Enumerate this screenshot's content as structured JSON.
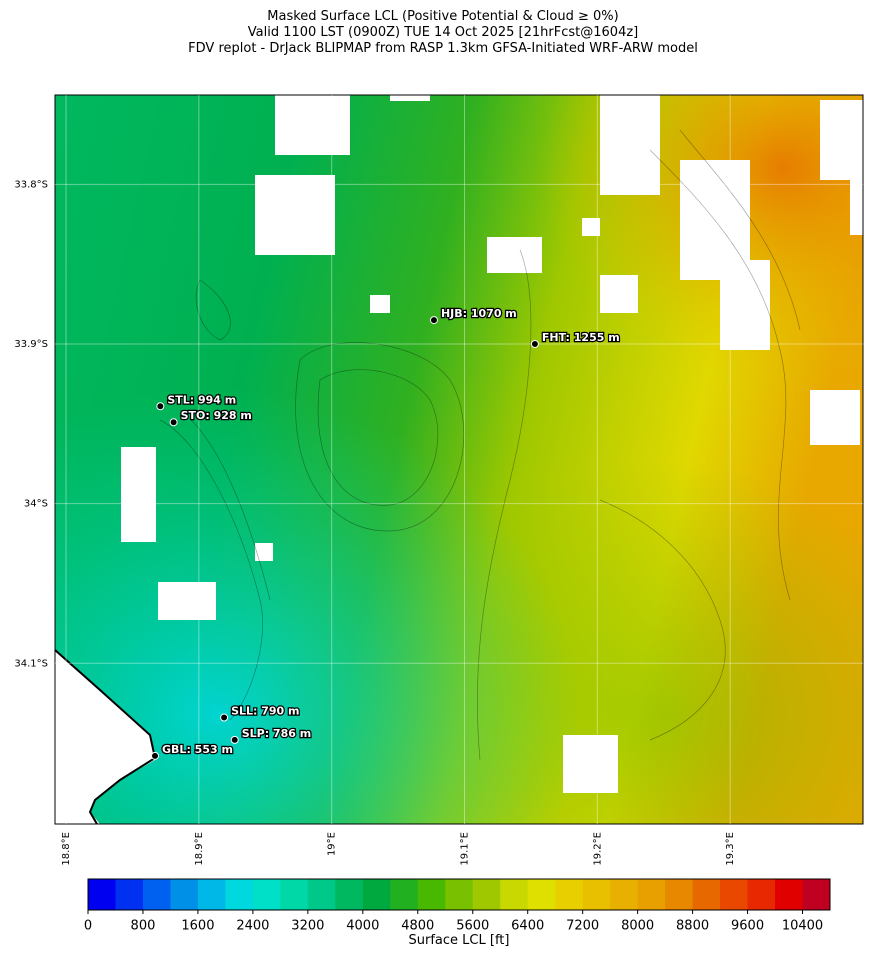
{
  "chart_data": {
    "type": "map",
    "title": [
      "Masked Surface LCL (Positive Potential & Cloud ≥ 0%)",
      "Valid 1100 LST (0900Z) TUE 14 Oct 2025 [21hrFcst@1604z]",
      "FDV replot - DrJack BLIPMAP from RASP 1.3km GFSA-Initiated WRF-ARW model"
    ],
    "xlim": [
      18.7917,
      19.4
    ],
    "ylim": [
      -34.2007,
      -33.744
    ],
    "xticks": [
      {
        "value": 18.8,
        "label": "18.8°E"
      },
      {
        "value": 18.9,
        "label": "18.9°E"
      },
      {
        "value": 19.0,
        "label": "19°E"
      },
      {
        "value": 19.1,
        "label": "19.1°E"
      },
      {
        "value": 19.2,
        "label": "19.2°E"
      },
      {
        "value": 19.3,
        "label": "19.3°E"
      }
    ],
    "yticks": [
      {
        "value": -33.8,
        "label": "33.8°S"
      },
      {
        "value": -33.9,
        "label": "33.9°S"
      },
      {
        "value": -34.0,
        "label": "34°S"
      },
      {
        "value": -34.1,
        "label": "34.1°S"
      }
    ],
    "stations": [
      {
        "label": "HJB: 1070 m",
        "lon": 19.077,
        "lat": -33.885
      },
      {
        "label": "FHT: 1255 m",
        "lon": 19.153,
        "lat": -33.9
      },
      {
        "label": "STL: 994 m",
        "lon": 18.871,
        "lat": -33.939
      },
      {
        "label": "STO: 928 m",
        "lon": 18.881,
        "lat": -33.949
      },
      {
        "label": "SLL: 790 m",
        "lon": 18.919,
        "lat": -34.134
      },
      {
        "label": "SLP: 786 m",
        "lon": 18.927,
        "lat": -34.148
      },
      {
        "label": "GBL: 553 m",
        "lon": 18.867,
        "lat": -34.158
      }
    ],
    "colorbar": {
      "label": "Surface LCL [ft]",
      "lim": [
        0,
        10800
      ],
      "ticks": [
        0,
        800,
        1600,
        2400,
        3200,
        4000,
        4800,
        5600,
        6400,
        7200,
        8000,
        8800,
        9600,
        10400
      ],
      "colors": [
        "#0000f0",
        "#0030f0",
        "#0060f0",
        "#0090e8",
        "#00b8e8",
        "#00d8e0",
        "#00e0c8",
        "#00d8a8",
        "#00c888",
        "#00b860",
        "#00a840",
        "#20b020",
        "#48b800",
        "#78c000",
        "#a0c800",
        "#c8d800",
        "#e0e000",
        "#e8d000",
        "#e8c000",
        "#e8b000",
        "#e8a000",
        "#e88800",
        "#e86800",
        "#e84800",
        "#e82800",
        "#e00000",
        "#c00020"
      ]
    }
  }
}
